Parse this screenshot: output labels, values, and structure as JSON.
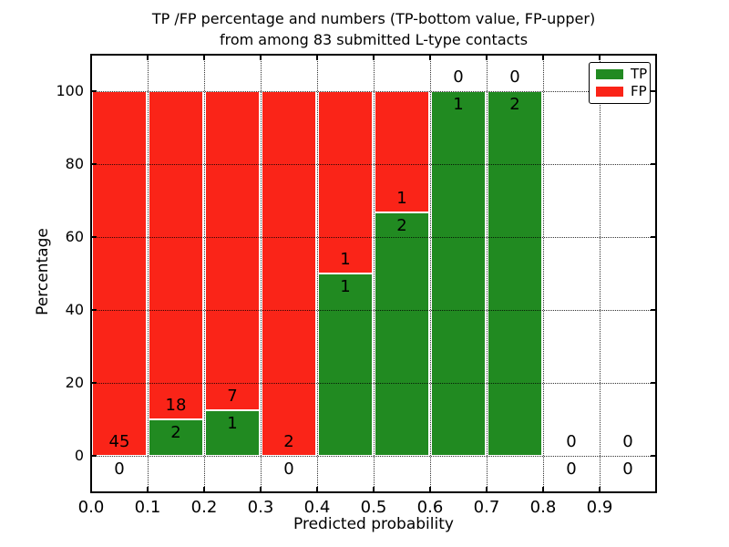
{
  "title": {
    "line1": "TP /FP percentage and numbers (TP-bottom value, FP-upper)",
    "line2": "from among 83 submitted L-type contacts"
  },
  "chart_data": {
    "type": "bar",
    "subtype": "stacked-percentage-histogram",
    "title": "TP /FP percentage and numbers (TP-bottom value, FP-upper) from among 83 submitted L-type contacts",
    "xlabel": "Predicted probability",
    "ylabel": "Percentage",
    "xlim": [
      0.0,
      1.0
    ],
    "ylim": [
      -10,
      110
    ],
    "xticks": [
      "0.0",
      "0.1",
      "0.2",
      "0.3",
      "0.4",
      "0.5",
      "0.6",
      "0.7",
      "0.8",
      "0.9"
    ],
    "yticks": [
      0,
      20,
      40,
      60,
      80,
      100
    ],
    "grid": "dotted",
    "bin_width": 0.1,
    "categories": [
      "0.0-0.1",
      "0.1-0.2",
      "0.2-0.3",
      "0.3-0.4",
      "0.4-0.5",
      "0.5-0.6",
      "0.6-0.7",
      "0.7-0.8",
      "0.8-0.9",
      "0.9-1.0"
    ],
    "series": [
      {
        "name": "TP",
        "color": "#218a21",
        "counts": [
          0,
          2,
          1,
          0,
          1,
          2,
          1,
          2,
          0,
          0
        ]
      },
      {
        "name": "FP",
        "color": "#fa2418",
        "counts": [
          45,
          18,
          7,
          2,
          1,
          1,
          0,
          0,
          0,
          0
        ]
      }
    ],
    "bins": [
      {
        "range": "0.0-0.1",
        "tp": 0,
        "fp": 45,
        "tp_pct": 0,
        "has_bar": true
      },
      {
        "range": "0.1-0.2",
        "tp": 2,
        "fp": 18,
        "tp_pct": 10,
        "has_bar": true
      },
      {
        "range": "0.2-0.3",
        "tp": 1,
        "fp": 7,
        "tp_pct": 12.5,
        "has_bar": true
      },
      {
        "range": "0.3-0.4",
        "tp": 0,
        "fp": 2,
        "tp_pct": 0,
        "has_bar": true
      },
      {
        "range": "0.4-0.5",
        "tp": 1,
        "fp": 1,
        "tp_pct": 50,
        "has_bar": true
      },
      {
        "range": "0.5-0.6",
        "tp": 2,
        "fp": 1,
        "tp_pct": 66.667,
        "has_bar": true
      },
      {
        "range": "0.6-0.7",
        "tp": 1,
        "fp": 0,
        "tp_pct": 100,
        "has_bar": true
      },
      {
        "range": "0.7-0.8",
        "tp": 2,
        "fp": 0,
        "tp_pct": 100,
        "has_bar": true
      },
      {
        "range": "0.8-0.9",
        "tp": 0,
        "fp": 0,
        "tp_pct": 0,
        "has_bar": false
      },
      {
        "range": "0.9-1.0",
        "tp": 0,
        "fp": 0,
        "tp_pct": 0,
        "has_bar": false
      }
    ],
    "legend": {
      "position": "upper right",
      "entries": [
        {
          "label": "TP",
          "color": "#218a21"
        },
        {
          "label": "FP",
          "color": "#fa2418"
        }
      ]
    }
  },
  "colors": {
    "tp": "#218a21",
    "fp": "#fa2418",
    "background": "#ffffff",
    "frame": "#000000",
    "grid": "#000000",
    "text": "#000000"
  }
}
